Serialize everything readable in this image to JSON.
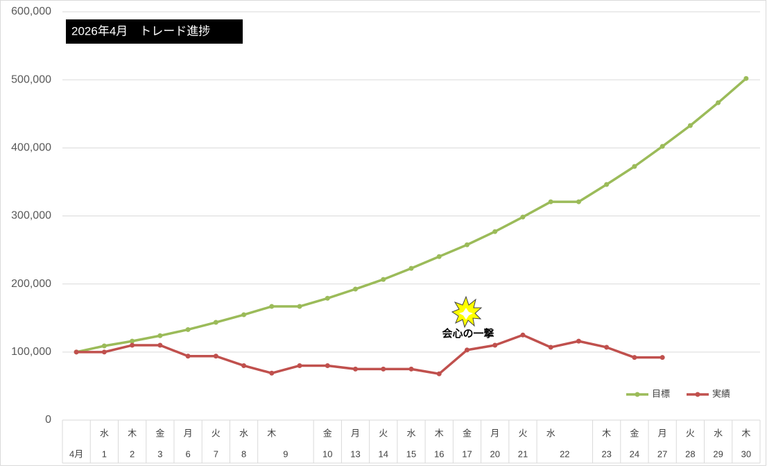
{
  "chart_data": {
    "type": "line",
    "title": "2026年4月　トレード進捗",
    "weekdays": [
      null,
      "水",
      "木",
      "金",
      "月",
      "火",
      "水",
      "木",
      null,
      "金",
      "月",
      "火",
      "水",
      "木",
      "金",
      "月",
      "火",
      "水",
      null,
      "木",
      "金",
      "月",
      "火",
      "水",
      "木"
    ],
    "days": [
      "4月",
      "1",
      "2",
      "3",
      "6",
      "7",
      "8",
      "9",
      null,
      "10",
      "13",
      "14",
      "15",
      "16",
      "17",
      "20",
      "21",
      "22",
      null,
      "23",
      "24",
      "27",
      "28",
      "29",
      "30"
    ],
    "series": [
      {
        "name": "目標",
        "color": "#9bbb59",
        "values": [
          100000,
          109000,
          116000,
          124000,
          133000,
          143600,
          154800,
          167000,
          167000,
          179000,
          192500,
          206700,
          223000,
          240300,
          257600,
          277000,
          298400,
          320800,
          320800,
          346200,
          372700,
          402200,
          432800,
          466400,
          502000
        ]
      },
      {
        "name": "実績",
        "color": "#c0504d",
        "values": [
          100000,
          100000,
          110000,
          110000,
          94000,
          94000,
          80000,
          69000,
          80000,
          80000,
          75000,
          75000,
          75000,
          68000,
          103000,
          110000,
          125000,
          107000,
          116000,
          107000,
          92000,
          92000,
          null,
          null,
          null
        ]
      }
    ],
    "ylim": [
      0,
      600000
    ],
    "yticks": [
      0,
      {
        "value": 100000,
        "label": "100,000"
      },
      {
        "value": 200000,
        "label": "200,000"
      },
      {
        "value": 300000,
        "label": "300,000"
      },
      {
        "value": 400000,
        "label": "400,000"
      },
      {
        "value": 500000,
        "label": "500,000"
      },
      {
        "value": 600000,
        "label": "600,000"
      }
    ],
    "grid": true,
    "legend": "bottom-right",
    "annotation": "会心の一撃"
  }
}
